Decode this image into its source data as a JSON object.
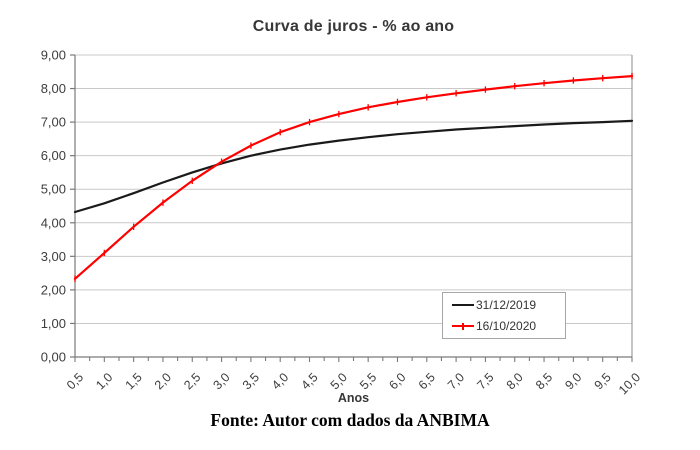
{
  "title": "Curva de juros - % ao ano",
  "source_note": "Fonte: Autor com dados da ANBIMA",
  "colors": {
    "background": "#ffffff",
    "grid": "#c9c9c9",
    "axis": "#7a7a7a",
    "border": "#9e9e9e",
    "tick_text": "#3d3d3d",
    "series_2019": "#1a1a1a",
    "series_2020": "#ff0000"
  },
  "chart_data": {
    "type": "line",
    "title": "Curva de juros - % ao ano",
    "xlabel": "Anos",
    "ylabel": "",
    "xlim": [
      0.5,
      10
    ],
    "ylim": [
      0,
      9
    ],
    "grid": "horizontal",
    "legend_position": "inside-bottom-right",
    "x": [
      0.5,
      1.0,
      1.5,
      2.0,
      2.5,
      3.0,
      3.5,
      4.0,
      4.5,
      5.0,
      5.5,
      6.0,
      6.5,
      7.0,
      7.5,
      8.0,
      8.5,
      9.0,
      9.5,
      10.0
    ],
    "xtick_labels": [
      "0,5",
      "1,0",
      "1,5",
      "2,0",
      "2,5",
      "3,0",
      "3,5",
      "4,0",
      "4,5",
      "5,0",
      "5,5",
      "6,0",
      "6,5",
      "7,0",
      "7,5",
      "8,0",
      "8,5",
      "9,0",
      "9,5",
      "10,0"
    ],
    "ytick_labels": [
      "0,00",
      "1,00",
      "2,00",
      "3,00",
      "4,00",
      "5,00",
      "6,00",
      "7,00",
      "8,00",
      "9,00"
    ],
    "minor_xtick_step": 0.25,
    "series": [
      {
        "name": "31/12/2019",
        "color": "#1a1a1a",
        "marker": "none",
        "values": [
          4.32,
          4.58,
          4.88,
          5.2,
          5.5,
          5.77,
          6.0,
          6.18,
          6.33,
          6.45,
          6.55,
          6.64,
          6.71,
          6.78,
          6.83,
          6.88,
          6.93,
          6.97,
          7.0,
          7.04
        ]
      },
      {
        "name": "16/10/2020",
        "color": "#ff0000",
        "marker": "vtick",
        "values": [
          2.33,
          3.1,
          3.88,
          4.6,
          5.25,
          5.82,
          6.3,
          6.7,
          7.0,
          7.24,
          7.44,
          7.6,
          7.74,
          7.86,
          7.97,
          8.07,
          8.16,
          8.24,
          8.31,
          8.37
        ]
      }
    ]
  }
}
